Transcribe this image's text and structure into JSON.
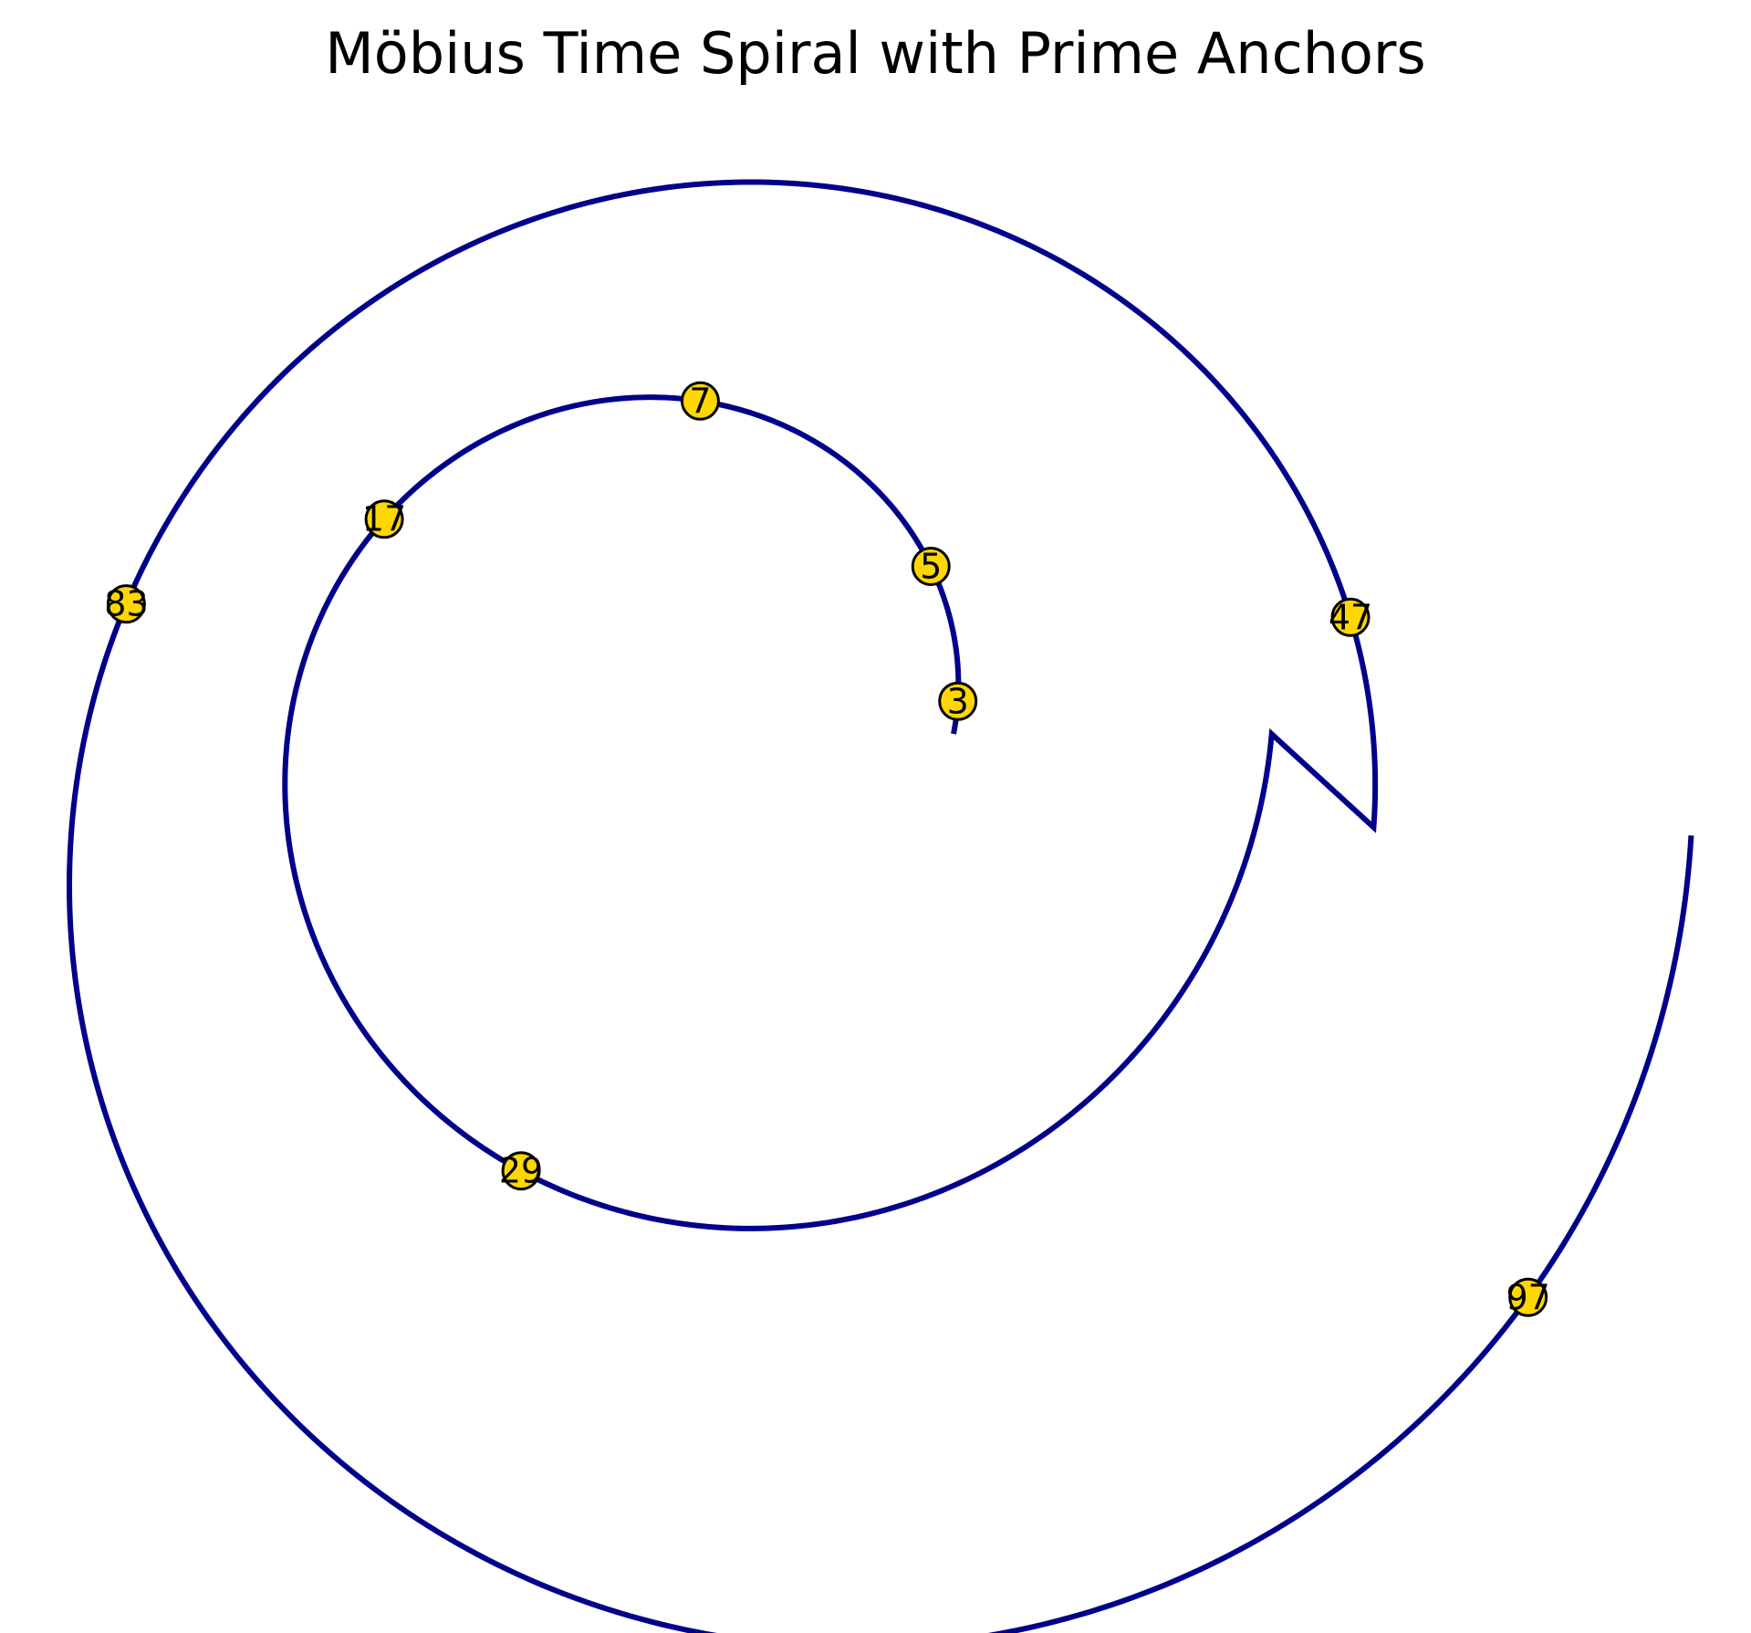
{
  "chart_data": {
    "type": "scatter",
    "title": "Möbius Time Spiral with Prime Anchors",
    "xlabel": "",
    "ylabel": "",
    "axes_visible": false,
    "grid": false,
    "legend": "none",
    "spiral": {
      "form": "archimedean",
      "theta_start": 0,
      "theta_end": 12.566,
      "a": 1.0,
      "b": 0.2,
      "x_offset": 0.4,
      "y_offset": -0.4,
      "color": "#00008b"
    },
    "anchors": {
      "color": "#ffd700",
      "edge_color": "#000000",
      "label_color": "#000000",
      "points": [
        {
          "label": "3",
          "theta": 0.126
        },
        {
          "label": "5",
          "theta": 0.628
        },
        {
          "label": "7",
          "theta": 1.571
        },
        {
          "label": "17",
          "theta": 2.545
        },
        {
          "label": "29",
          "theta": 4.323
        },
        {
          "label": "47",
          "theta": 6.661
        },
        {
          "label": "83",
          "theta": 9.095
        },
        {
          "label": "97",
          "theta": 12.0
        }
      ]
    }
  }
}
